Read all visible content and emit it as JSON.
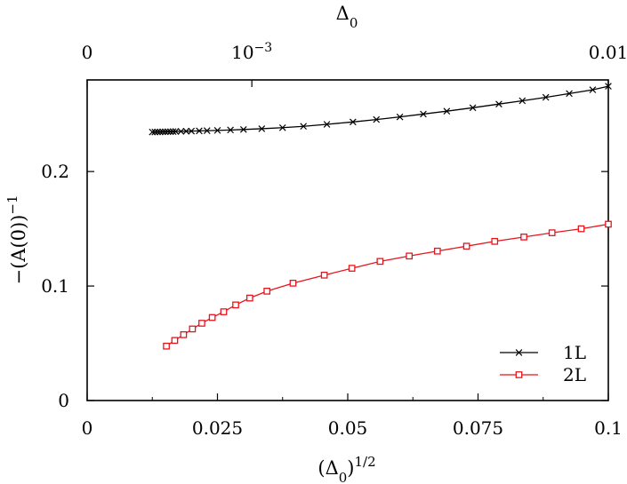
{
  "chart_data": {
    "type": "line",
    "xlabel": "(Δ₀)^{1/2}",
    "x2label": "Δ₀",
    "ylabel": "−(A(0))^{−1}",
    "xlim": [
      0,
      0.1
    ],
    "ylim": [
      0,
      0.28
    ],
    "x_ticks": [
      {
        "value": 0,
        "label": "0"
      },
      {
        "value": 0.025,
        "label": "0.025"
      },
      {
        "value": 0.05,
        "label": "0.05"
      },
      {
        "value": 0.075,
        "label": "0.075"
      },
      {
        "value": 0.1,
        "label": "0.1"
      }
    ],
    "x2_ticks": [
      {
        "value": 0,
        "label": "0",
        "sup": ""
      },
      {
        "value": 0.0316,
        "label": "10",
        "sup": "−3"
      },
      {
        "value": 0.1,
        "label": "0.01",
        "sup": ""
      }
    ],
    "y_ticks": [
      {
        "value": 0,
        "label": "0"
      },
      {
        "value": 0.1,
        "label": "0.1"
      },
      {
        "value": 0.2,
        "label": "0.2"
      }
    ],
    "grid": false,
    "legend": "bottom-right",
    "series": [
      {
        "name": "1L",
        "color": "#000000",
        "marker": "cross",
        "x": [
          0.0125,
          0.013,
          0.0135,
          0.014,
          0.0145,
          0.015,
          0.0155,
          0.016,
          0.0165,
          0.017,
          0.018,
          0.019,
          0.02,
          0.0215,
          0.023,
          0.025,
          0.0275,
          0.03,
          0.0335,
          0.0375,
          0.0415,
          0.046,
          0.051,
          0.0555,
          0.06,
          0.0645,
          0.069,
          0.074,
          0.079,
          0.0835,
          0.088,
          0.0925,
          0.097,
          0.1
        ],
        "y": [
          0.2345,
          0.2345,
          0.2346,
          0.2346,
          0.2347,
          0.2347,
          0.2348,
          0.2348,
          0.2349,
          0.235,
          0.2351,
          0.2352,
          0.2353,
          0.2355,
          0.2357,
          0.2359,
          0.2363,
          0.2367,
          0.2374,
          0.2383,
          0.2395,
          0.2412,
          0.2433,
          0.2454,
          0.2477,
          0.2502,
          0.2527,
          0.2557,
          0.2589,
          0.2618,
          0.2648,
          0.2681,
          0.2714,
          0.2745
        ]
      },
      {
        "name": "2L",
        "color": "#e8141c",
        "marker": "square",
        "x": [
          0.0152,
          0.0168,
          0.0185,
          0.0202,
          0.022,
          0.024,
          0.0262,
          0.0285,
          0.0312,
          0.0345,
          0.0395,
          0.0455,
          0.0508,
          0.0562,
          0.0618,
          0.0672,
          0.0728,
          0.0782,
          0.0838,
          0.0892,
          0.0948,
          0.1
        ],
        "y": [
          0.0475,
          0.0525,
          0.0575,
          0.0625,
          0.0675,
          0.0725,
          0.0775,
          0.0835,
          0.0895,
          0.0955,
          0.1025,
          0.1095,
          0.1155,
          0.1215,
          0.1262,
          0.1305,
          0.1348,
          0.139,
          0.1428,
          0.1465,
          0.15,
          0.154
        ]
      }
    ]
  }
}
